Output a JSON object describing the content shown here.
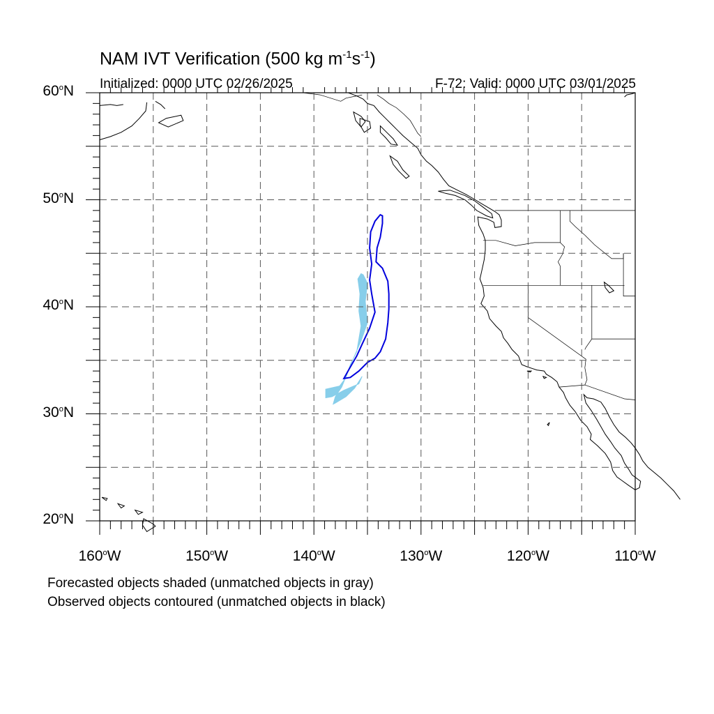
{
  "title": {
    "main": "NAM IVT Verification (500 kg m",
    "exp1": "-1",
    "mid": "s",
    "exp2": "-1",
    "close": ")"
  },
  "subtitle": {
    "initialized": "Initialized: 0000 UTC 02/26/2025",
    "valid": "F-72: Valid: 0000 UTC 03/01/2025"
  },
  "map": {
    "projection": "cylindrical-equidistant",
    "lon_range": [
      -160,
      -110
    ],
    "lat_range": [
      20,
      60
    ],
    "grid_spacing_deg": 5,
    "grid_style": "dashed"
  },
  "axes": {
    "y_ticks": [
      {
        "lat": 60,
        "num": "60",
        "hem": "N"
      },
      {
        "lat": 50,
        "num": "50",
        "hem": "N"
      },
      {
        "lat": 40,
        "num": "40",
        "hem": "N"
      },
      {
        "lat": 30,
        "num": "30",
        "hem": "N"
      },
      {
        "lat": 20,
        "num": "20",
        "hem": "N"
      }
    ],
    "x_ticks": [
      {
        "lon": -160,
        "num": "160",
        "hem": "W"
      },
      {
        "lon": -150,
        "num": "150",
        "hem": "W"
      },
      {
        "lon": -140,
        "num": "140",
        "hem": "W"
      },
      {
        "lon": -130,
        "num": "130",
        "hem": "W"
      },
      {
        "lon": -120,
        "num": "120",
        "hem": "W"
      },
      {
        "lon": -110,
        "num": "110",
        "hem": "W"
      }
    ]
  },
  "objects": {
    "forecast_color": "#87ceea",
    "observed_color": "#0000dd",
    "forecast_polygon": [
      [
        -135.4,
        43.0
      ],
      [
        -135.0,
        42.2
      ],
      [
        -135.2,
        40.5
      ],
      [
        -135.0,
        38.5
      ],
      [
        -135.6,
        36.8
      ],
      [
        -136.3,
        35.2
      ],
      [
        -137.0,
        33.5
      ],
      [
        -137.4,
        32.5
      ],
      [
        -138.0,
        31.6
      ],
      [
        -138.2,
        30.9
      ],
      [
        -138.0,
        31.0
      ],
      [
        -137.0,
        31.6
      ],
      [
        -136.2,
        32.4
      ],
      [
        -135.5,
        33.5
      ],
      [
        -135.8,
        32.8
      ],
      [
        -137.2,
        32.2
      ],
      [
        -138.3,
        31.6
      ],
      [
        -138.9,
        31.5
      ],
      [
        -138.9,
        32.3
      ],
      [
        -137.6,
        32.6
      ],
      [
        -137.0,
        33.4
      ],
      [
        -136.6,
        34.6
      ],
      [
        -136.0,
        35.8
      ],
      [
        -135.8,
        37.0
      ],
      [
        -135.6,
        38.2
      ],
      [
        -135.8,
        39.6
      ],
      [
        -135.7,
        41.2
      ],
      [
        -135.9,
        42.6
      ],
      [
        -135.6,
        43.1
      ]
    ],
    "observed_polygon": [
      [
        -133.8,
        48.6
      ],
      [
        -134.3,
        48.0
      ],
      [
        -134.7,
        47.0
      ],
      [
        -134.8,
        45.5
      ],
      [
        -134.6,
        44.0
      ],
      [
        -134.8,
        42.5
      ],
      [
        -134.6,
        41.2
      ],
      [
        -134.3,
        39.5
      ],
      [
        -134.8,
        38.0
      ],
      [
        -135.5,
        36.5
      ],
      [
        -136.0,
        35.4
      ],
      [
        -136.7,
        34.2
      ],
      [
        -137.2,
        33.3
      ],
      [
        -136.6,
        33.4
      ],
      [
        -135.8,
        34.0
      ],
      [
        -135.0,
        34.8
      ],
      [
        -134.3,
        35.2
      ],
      [
        -133.8,
        35.8
      ],
      [
        -133.3,
        37.0
      ],
      [
        -133.1,
        38.5
      ],
      [
        -133.0,
        39.8
      ],
      [
        -133.0,
        41.2
      ],
      [
        -133.1,
        42.4
      ],
      [
        -133.6,
        43.6
      ],
      [
        -134.2,
        44.2
      ],
      [
        -134.1,
        45.5
      ],
      [
        -133.8,
        46.5
      ],
      [
        -133.6,
        47.8
      ],
      [
        -133.6,
        48.5
      ]
    ]
  },
  "notes": [
    "Forecasted objects shaded (unmatched objects in gray)",
    "Observed objects contoured (unmatched objects in black)"
  ]
}
